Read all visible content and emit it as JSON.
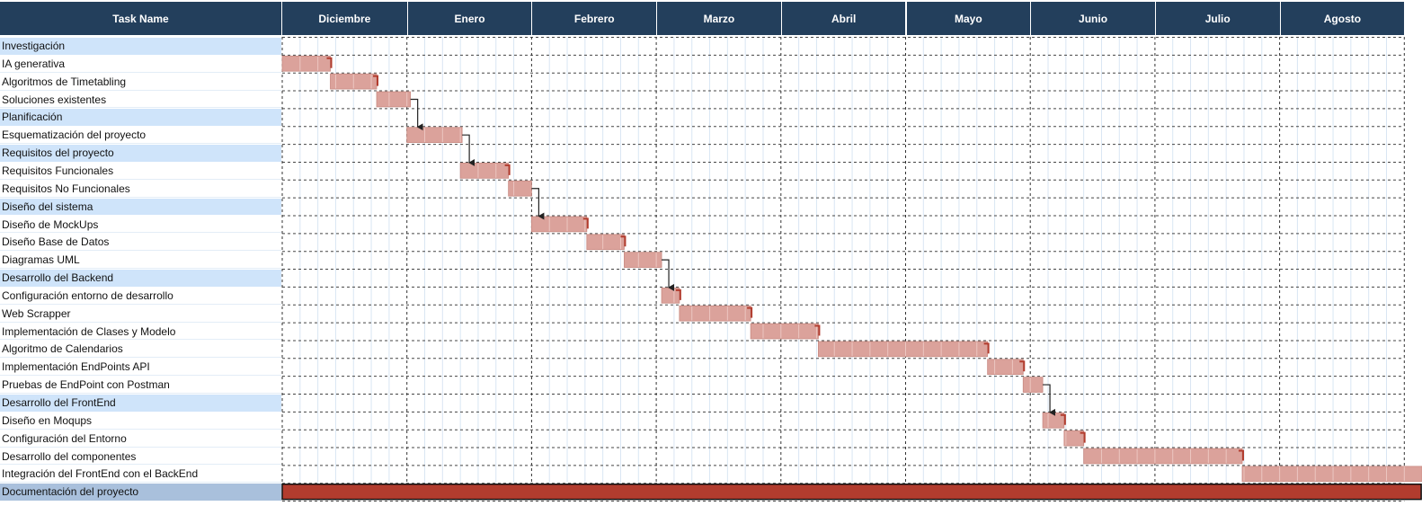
{
  "header": {
    "task_name_label": "Task Name",
    "months": [
      "Diciembre",
      "Enero",
      "Febrero",
      "Marzo",
      "Abril",
      "Mayo",
      "Junio",
      "Julio",
      "Agosto"
    ]
  },
  "colors": {
    "header_bg": "#233f5c",
    "group_row_bg": "#cfe4fa",
    "doc_row_bg": "#a9c0dc",
    "task_bar": "#dba29b",
    "task_bar_border": "#c98a82",
    "doc_bar": "#b23c2e",
    "connector_red": "#b23c2e",
    "connector_black": "#222222"
  },
  "chart_data": {
    "type": "gantt",
    "timeline_units": "weeks from start of Diciembre",
    "tasks": [
      {
        "name": "Investigación",
        "kind": "group"
      },
      {
        "name": "IA generativa",
        "kind": "task",
        "start": 0,
        "end": 2.7
      },
      {
        "name": "Algoritmos de Timetabling",
        "kind": "task",
        "start": 2.7,
        "end": 5.3
      },
      {
        "name": "Soluciones existentes",
        "kind": "task",
        "start": 5.3,
        "end": 7.2
      },
      {
        "name": "Planificación",
        "kind": "group"
      },
      {
        "name": "Esquematización del proyecto",
        "kind": "task",
        "start": 7.0,
        "end": 10.1
      },
      {
        "name": "Requisitos del proyecto",
        "kind": "group"
      },
      {
        "name": "Requisitos Funcionales",
        "kind": "task",
        "start": 10.0,
        "end": 12.7
      },
      {
        "name": "Requisitos No Funcionales",
        "kind": "task",
        "start": 12.7,
        "end": 14.0
      },
      {
        "name": "Diseño del sistema",
        "kind": "group"
      },
      {
        "name": "Diseño de MockUps",
        "kind": "task",
        "start": 14.0,
        "end": 17.1
      },
      {
        "name": "Diseño Base de Datos",
        "kind": "task",
        "start": 17.1,
        "end": 19.2
      },
      {
        "name": "Diagramas UML",
        "kind": "task",
        "start": 19.2,
        "end": 21.3
      },
      {
        "name": "Desarrollo del Backend",
        "kind": "group"
      },
      {
        "name": "Configuración entorno de desarrollo",
        "kind": "task",
        "start": 21.3,
        "end": 22.3
      },
      {
        "name": "Web Scrapper",
        "kind": "task",
        "start": 22.3,
        "end": 26.3
      },
      {
        "name": "Implementación de Clases y Modelo",
        "kind": "task",
        "start": 26.3,
        "end": 30.1
      },
      {
        "name": "Algoritmo de Calendarios",
        "kind": "task",
        "start": 30.1,
        "end": 39.6
      },
      {
        "name": "Implementación EndPoints API",
        "kind": "task",
        "start": 39.6,
        "end": 41.6
      },
      {
        "name": "Pruebas de EndPoint con Postman",
        "kind": "task",
        "start": 41.6,
        "end": 42.7
      },
      {
        "name": "Desarrollo del FrontEnd",
        "kind": "group"
      },
      {
        "name": "Diseño en Moqups",
        "kind": "task",
        "start": 42.7,
        "end": 43.9
      },
      {
        "name": "Configuración del Entorno",
        "kind": "task",
        "start": 43.9,
        "end": 45.0
      },
      {
        "name": "Desarrollo del componentes",
        "kind": "task",
        "start": 45.0,
        "end": 53.9
      },
      {
        "name": "Integración del FrontEnd con el BackEnd",
        "kind": "task",
        "start": 53.9,
        "end": 64.0
      },
      {
        "name": "Documentación del proyecto",
        "kind": "summary",
        "start": 0,
        "end": 64.0
      }
    ],
    "dependencies": [
      {
        "from": 1,
        "to": 2,
        "style": "red"
      },
      {
        "from": 2,
        "to": 3,
        "style": "red"
      },
      {
        "from": 3,
        "to": 5,
        "style": "black"
      },
      {
        "from": 5,
        "to": 7,
        "style": "black"
      },
      {
        "from": 7,
        "to": 8,
        "style": "red"
      },
      {
        "from": 8,
        "to": 10,
        "style": "black"
      },
      {
        "from": 10,
        "to": 11,
        "style": "red"
      },
      {
        "from": 11,
        "to": 12,
        "style": "red"
      },
      {
        "from": 12,
        "to": 14,
        "style": "black"
      },
      {
        "from": 14,
        "to": 15,
        "style": "red"
      },
      {
        "from": 15,
        "to": 16,
        "style": "red"
      },
      {
        "from": 16,
        "to": 17,
        "style": "red"
      },
      {
        "from": 17,
        "to": 18,
        "style": "red"
      },
      {
        "from": 18,
        "to": 19,
        "style": "red"
      },
      {
        "from": 19,
        "to": 21,
        "style": "black"
      },
      {
        "from": 21,
        "to": 22,
        "style": "red"
      },
      {
        "from": 22,
        "to": 23,
        "style": "red"
      },
      {
        "from": 23,
        "to": 24,
        "style": "red"
      }
    ]
  }
}
